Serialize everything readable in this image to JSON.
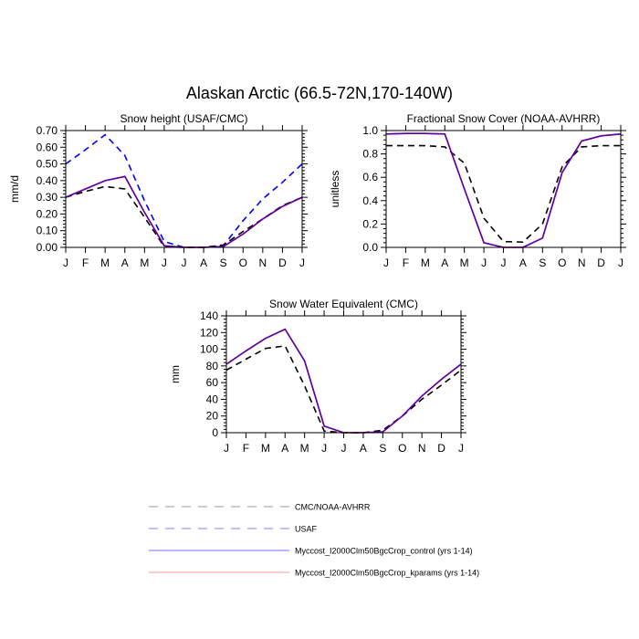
{
  "title": "Alaskan Arctic (66.5-72N,170-140W)",
  "months": [
    "J",
    "F",
    "M",
    "A",
    "M",
    "J",
    "J",
    "A",
    "S",
    "O",
    "N",
    "D",
    "J"
  ],
  "colors": {
    "obs": "#000000",
    "usaf": "#0000ff",
    "control": "#0000ff",
    "kparams": "#ff0000"
  },
  "legend": [
    {
      "label": "CMC/NOAA-AVHRR",
      "color": "#999999",
      "style": "dashed"
    },
    {
      "label": "USAF",
      "color": "#8080ff",
      "style": "dashed"
    },
    {
      "label": "Myccost_I2000Clm50BgcCrop_control (yrs 1-14)",
      "color": "#7070ff",
      "style": "solid"
    },
    {
      "label": "Myccost_I2000Clm50BgcCrop_kparams (yrs 1-14)",
      "color": "#ff9999",
      "style": "solid"
    }
  ],
  "chart_data": [
    {
      "type": "line",
      "title": "Snow height (USAF/CMC)",
      "ylabel": "mm/d",
      "ylim": [
        0,
        0.7
      ],
      "yticks": [
        "0.00",
        "0.10",
        "0.20",
        "0.30",
        "0.40",
        "0.50",
        "0.60",
        "0.70"
      ],
      "ytick_values": [
        0,
        0.1,
        0.2,
        0.3,
        0.4,
        0.5,
        0.6,
        0.7
      ],
      "series": [
        {
          "key": "usaf",
          "style": "dashed",
          "values": [
            0.5,
            0.585,
            0.675,
            0.55,
            0.28,
            0.035,
            0,
            0,
            0.01,
            0.16,
            0.29,
            0.39,
            0.5
          ]
        },
        {
          "key": "obs",
          "style": "dashed",
          "values": [
            0.3,
            0.335,
            0.365,
            0.35,
            0.18,
            0.005,
            0,
            0,
            0.015,
            0.095,
            0.17,
            0.25,
            0.3
          ]
        },
        {
          "key": "kparams",
          "style": "solid",
          "values": [
            0.3,
            0.35,
            0.4,
            0.425,
            0.21,
            0.01,
            0,
            0,
            0.005,
            0.08,
            0.17,
            0.245,
            0.3
          ]
        },
        {
          "key": "control",
          "style": "solid",
          "values": [
            0.3,
            0.35,
            0.4,
            0.425,
            0.21,
            0.01,
            0,
            0,
            0.005,
            0.08,
            0.17,
            0.245,
            0.3
          ]
        }
      ]
    },
    {
      "type": "line",
      "title": "Fractional Snow Cover (NOAA-AVHRR)",
      "ylabel": "unitless",
      "ylim": [
        0,
        1.0
      ],
      "yticks": [
        "0.0",
        "0.2",
        "0.4",
        "0.6",
        "0.8",
        "1.0"
      ],
      "ytick_values": [
        0,
        0.2,
        0.4,
        0.6,
        0.8,
        1.0
      ],
      "series": [
        {
          "key": "obs",
          "style": "dashed",
          "values": [
            0.87,
            0.87,
            0.87,
            0.86,
            0.72,
            0.25,
            0.05,
            0.045,
            0.2,
            0.69,
            0.86,
            0.87,
            0.87
          ]
        },
        {
          "key": "kparams",
          "style": "solid",
          "values": [
            0.97,
            0.975,
            0.975,
            0.97,
            0.5,
            0.04,
            0,
            0,
            0.08,
            0.64,
            0.91,
            0.955,
            0.97
          ]
        },
        {
          "key": "control",
          "style": "solid",
          "values": [
            0.97,
            0.975,
            0.975,
            0.97,
            0.5,
            0.04,
            0,
            0,
            0.08,
            0.64,
            0.91,
            0.955,
            0.97
          ]
        }
      ]
    },
    {
      "type": "line",
      "title": "Snow Water Equivalent (CMC)",
      "ylabel": "mm",
      "ylim": [
        0,
        140
      ],
      "yticks": [
        "0",
        "20",
        "40",
        "60",
        "80",
        "100",
        "120",
        "140"
      ],
      "ytick_values": [
        0,
        20,
        40,
        60,
        80,
        100,
        120,
        140
      ],
      "series": [
        {
          "key": "obs",
          "style": "dashed",
          "values": [
            75,
            88,
            101,
            104,
            56,
            2,
            0,
            0,
            3,
            20,
            40,
            57,
            75
          ]
        },
        {
          "key": "kparams",
          "style": "solid",
          "values": [
            82,
            98,
            113,
            124,
            86,
            8,
            0,
            0,
            1,
            20,
            44,
            64,
            82
          ]
        },
        {
          "key": "control",
          "style": "solid",
          "values": [
            82,
            98,
            113,
            124,
            86,
            8,
            0,
            0,
            1,
            20,
            44,
            64,
            82
          ]
        }
      ]
    }
  ]
}
